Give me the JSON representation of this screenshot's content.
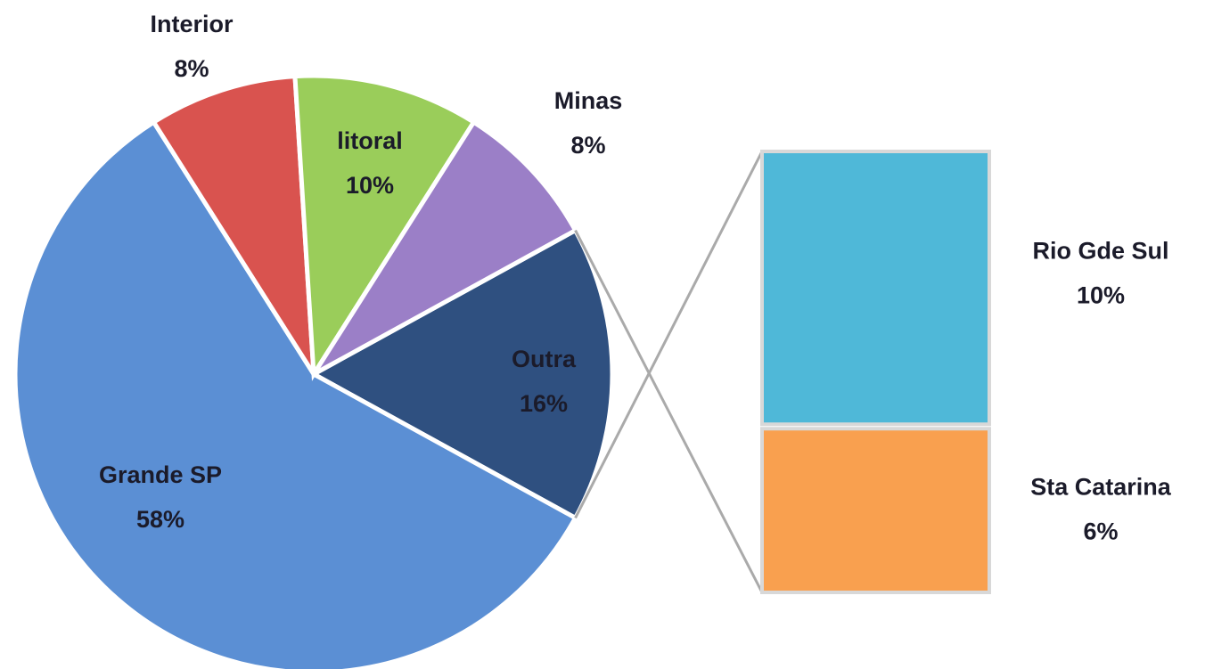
{
  "chart_data": {
    "type": "pie",
    "categories": [
      "Outra",
      "Grande SP",
      "Interior",
      "litoral",
      "Minas"
    ],
    "values": [
      16,
      58,
      8,
      10,
      8
    ],
    "value_labels": [
      "16%",
      "58%",
      "8%",
      "10%",
      "8%"
    ],
    "colors": [
      "#2f5080",
      "#5b8fd4",
      "#d9534f",
      "#9acd5a",
      "#9b7fc7"
    ],
    "breakdown": {
      "type": "bar",
      "categories": [
        "Rio Gde Sul",
        "Sta Catarina"
      ],
      "values": [
        10,
        6
      ],
      "value_labels": [
        "10%",
        "6%"
      ],
      "colors": [
        "#4fb8d8",
        "#f9a04f"
      ]
    }
  }
}
